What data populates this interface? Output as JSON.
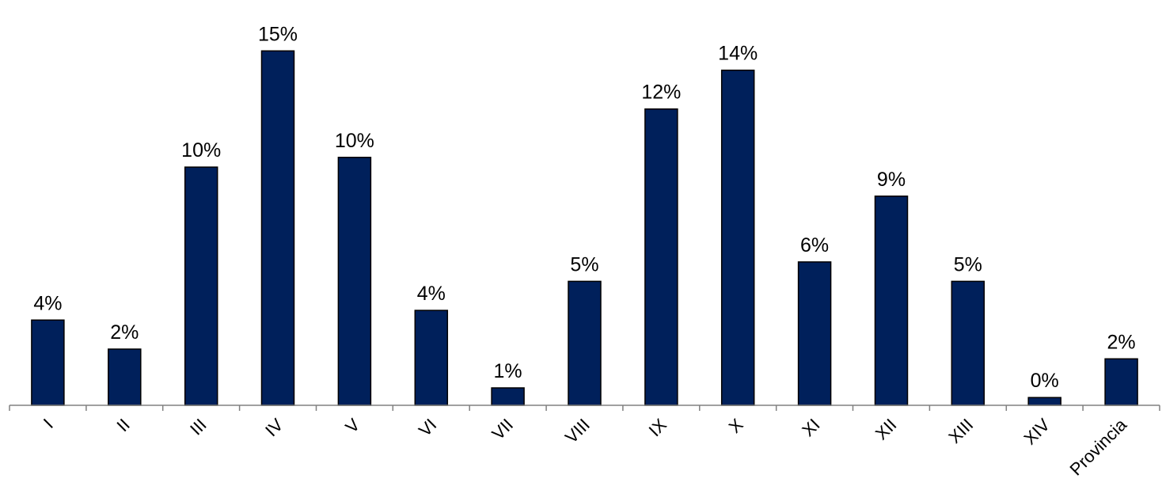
{
  "chart_data": {
    "type": "bar",
    "title": "",
    "xlabel": "",
    "ylabel": "",
    "categories": [
      "I",
      "II",
      "III",
      "IV",
      "V",
      "VI",
      "VII",
      "VIII",
      "IX",
      "X",
      "XI",
      "XII",
      "XIII",
      "XIV",
      "Provincia"
    ],
    "values": [
      4.4,
      2.9,
      12.3,
      18.3,
      12.8,
      4.9,
      0.9,
      6.4,
      15.3,
      17.3,
      7.4,
      10.8,
      6.4,
      0.4,
      2.4
    ],
    "data_labels": [
      "4%",
      "2%",
      "10%",
      "15%",
      "10%",
      "4%",
      "1%",
      "5%",
      "12%",
      "14%",
      "6%",
      "9%",
      "5%",
      "0%",
      "2%"
    ],
    "ylim": [
      0,
      19.7
    ],
    "grid": false,
    "legend": "none",
    "bar_color": "#00205b",
    "bar_edge_color": "#000000",
    "axis_color": "#808080"
  }
}
